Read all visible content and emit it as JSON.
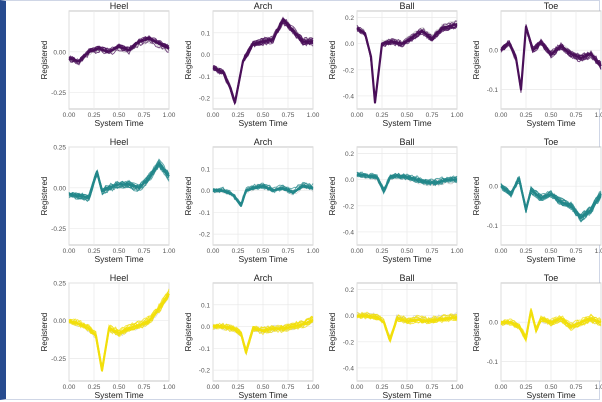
{
  "panel_titles": {
    "heel": "Heel",
    "arch": "Arch",
    "ball": "Ball",
    "toe": "Toe"
  },
  "axis_labels": {
    "x": "System Time",
    "y": "Registered"
  },
  "colors": {
    "purple": "#4a0f59",
    "teal": "#22878a",
    "yellow": "#f2df0a",
    "grid": "#e9e9e9",
    "panel_border": "#b9b9b9",
    "trace_gray": "#b9b9b9"
  },
  "chart_data": [
    {
      "type": "line",
      "title": "Heel",
      "row": 1,
      "color_key": "purple",
      "xlabel": "System Time",
      "ylabel": "Registered",
      "xlim": [
        0,
        1
      ],
      "ylim": [
        -0.35,
        0.25
      ],
      "xticks": [
        "0.00",
        "0.25",
        "0.50",
        "0.75",
        "1.00"
      ],
      "yticks": [
        0.0,
        -0.25
      ],
      "ytick_labels": [
        "0.00",
        "-0.25"
      ],
      "series": [
        {
          "x": [
            0.0,
            0.1,
            0.2,
            0.3,
            0.4,
            0.5,
            0.6,
            0.7,
            0.8,
            0.9,
            1.0
          ],
          "y": [
            -0.04,
            -0.06,
            0.0,
            0.02,
            0.0,
            0.03,
            0.01,
            0.06,
            0.08,
            0.05,
            0.02
          ]
        }
      ]
    },
    {
      "type": "line",
      "title": "Arch",
      "row": 1,
      "color_key": "purple",
      "xlabel": "System Time",
      "ylabel": "Registered",
      "xlim": [
        0,
        1
      ],
      "ylim": [
        -0.25,
        0.2
      ],
      "xticks": [
        "0.00",
        "0.25",
        "0.50",
        "0.75",
        "1.00"
      ],
      "yticks": [
        0.1,
        0.0,
        -0.1,
        -0.2
      ],
      "ytick_labels": [
        "0.1",
        "0.0",
        "-0.1",
        "-0.2"
      ],
      "series": [
        {
          "x": [
            0.0,
            0.1,
            0.17,
            0.22,
            0.3,
            0.4,
            0.5,
            0.6,
            0.7,
            0.8,
            0.9,
            1.0
          ],
          "y": [
            -0.06,
            -0.08,
            -0.15,
            -0.22,
            -0.03,
            0.05,
            0.06,
            0.07,
            0.16,
            0.11,
            0.06,
            0.06
          ]
        }
      ]
    },
    {
      "type": "line",
      "title": "Ball",
      "row": 1,
      "color_key": "purple",
      "xlabel": "System Time",
      "ylabel": "Registered",
      "xlim": [
        0,
        1
      ],
      "ylim": [
        -0.5,
        0.25
      ],
      "xticks": [
        "0.00",
        "0.25",
        "0.50",
        "0.75",
        "1.00"
      ],
      "yticks": [
        0.2,
        0.0,
        -0.2,
        -0.4
      ],
      "ytick_labels": [
        "0.2",
        "0.0",
        "-0.2",
        "-0.4"
      ],
      "series": [
        {
          "x": [
            0.0,
            0.08,
            0.14,
            0.18,
            0.25,
            0.35,
            0.45,
            0.55,
            0.65,
            0.75,
            0.85,
            1.0
          ],
          "y": [
            0.12,
            0.08,
            -0.1,
            -0.45,
            0.0,
            0.02,
            0.0,
            0.05,
            0.1,
            0.04,
            0.12,
            0.15
          ]
        }
      ]
    },
    {
      "type": "line",
      "title": "Toe",
      "row": 1,
      "color_key": "purple",
      "xlabel": "System Time",
      "ylabel": "Registered",
      "xlim": [
        0,
        1
      ],
      "ylim": [
        -0.15,
        0.1
      ],
      "xticks": [
        "0.00",
        "0.25",
        "0.50",
        "0.75",
        "1.00"
      ],
      "yticks": [
        0.0,
        -0.1
      ],
      "ytick_labels": [
        "0.0",
        "-0.1"
      ],
      "series": [
        {
          "x": [
            0.0,
            0.08,
            0.15,
            0.2,
            0.25,
            0.32,
            0.4,
            0.5,
            0.6,
            0.7,
            0.8,
            0.9,
            1.0
          ],
          "y": [
            0.0,
            0.02,
            -0.02,
            -0.1,
            0.06,
            0.0,
            0.02,
            -0.01,
            0.01,
            -0.01,
            -0.02,
            -0.01,
            -0.04
          ]
        }
      ]
    },
    {
      "type": "line",
      "title": "Heel",
      "row": 2,
      "color_key": "teal",
      "xlabel": "System Time",
      "ylabel": "Registered",
      "xlim": [
        0,
        1
      ],
      "ylim": [
        -0.35,
        0.25
      ],
      "xticks": [
        "0.00",
        "0.25",
        "0.50",
        "0.75",
        "1.00"
      ],
      "yticks": [
        0.25,
        0.0,
        -0.25
      ],
      "ytick_labels": [
        "0.25",
        "0.00",
        "-0.25"
      ],
      "series": [
        {
          "x": [
            0.0,
            0.1,
            0.2,
            0.28,
            0.33,
            0.4,
            0.5,
            0.6,
            0.7,
            0.8,
            0.9,
            1.0
          ],
          "y": [
            -0.04,
            -0.05,
            -0.06,
            0.1,
            -0.02,
            0.0,
            0.02,
            0.02,
            0.0,
            0.06,
            0.15,
            0.07
          ]
        }
      ]
    },
    {
      "type": "line",
      "title": "Arch",
      "row": 2,
      "color_key": "teal",
      "xlabel": "System Time",
      "ylabel": "Registered",
      "xlim": [
        0,
        1
      ],
      "ylim": [
        -0.25,
        0.2
      ],
      "xticks": [
        "0.00",
        "0.25",
        "0.50",
        "0.75",
        "1.00"
      ],
      "yticks": [
        0.1,
        0.0,
        -0.1,
        -0.2
      ],
      "ytick_labels": [
        "0.1",
        "0.0",
        "-0.1",
        "-0.2"
      ],
      "series": [
        {
          "x": [
            0.0,
            0.1,
            0.2,
            0.28,
            0.33,
            0.4,
            0.5,
            0.6,
            0.7,
            0.8,
            0.9,
            1.0
          ],
          "y": [
            0.0,
            0.0,
            -0.02,
            -0.07,
            0.0,
            0.01,
            0.02,
            0.0,
            0.01,
            -0.01,
            0.02,
            0.01
          ]
        }
      ]
    },
    {
      "type": "line",
      "title": "Ball",
      "row": 2,
      "color_key": "teal",
      "xlabel": "System Time",
      "ylabel": "Registered",
      "xlim": [
        0,
        1
      ],
      "ylim": [
        -0.5,
        0.25
      ],
      "xticks": [
        "0.00",
        "0.25",
        "0.50",
        "0.75",
        "1.00"
      ],
      "yticks": [
        0.2,
        0.0,
        -0.2,
        -0.4
      ],
      "ytick_labels": [
        "0.2",
        "0.0",
        "-0.2",
        "-0.4"
      ],
      "series": [
        {
          "x": [
            0.0,
            0.1,
            0.2,
            0.27,
            0.33,
            0.4,
            0.5,
            0.6,
            0.7,
            0.8,
            0.9,
            1.0
          ],
          "y": [
            0.04,
            0.03,
            0.02,
            -0.09,
            0.02,
            0.03,
            0.02,
            0.0,
            -0.02,
            -0.02,
            0.0,
            0.0
          ]
        }
      ]
    },
    {
      "type": "line",
      "title": "Toe",
      "row": 2,
      "color_key": "teal",
      "xlabel": "System Time",
      "ylabel": "Registered",
      "xlim": [
        0,
        1
      ],
      "ylim": [
        -0.15,
        0.1
      ],
      "xticks": [
        "0.00",
        "0.25",
        "0.50",
        "0.75",
        "1.00"
      ],
      "yticks": [
        0.0,
        -0.1
      ],
      "ytick_labels": [
        "0.0",
        "-0.1"
      ],
      "series": [
        {
          "x": [
            0.0,
            0.1,
            0.18,
            0.25,
            0.3,
            0.4,
            0.5,
            0.6,
            0.7,
            0.8,
            0.9,
            1.0
          ],
          "y": [
            0.0,
            -0.02,
            0.02,
            -0.06,
            -0.01,
            -0.03,
            -0.02,
            -0.04,
            -0.05,
            -0.08,
            -0.06,
            -0.02
          ]
        }
      ]
    },
    {
      "type": "line",
      "title": "Heel",
      "row": 3,
      "color_key": "yellow",
      "xlabel": "System Time",
      "ylabel": "Registered",
      "xlim": [
        0,
        1
      ],
      "ylim": [
        -0.4,
        0.25
      ],
      "xticks": [
        "0.00",
        "0.25",
        "0.50",
        "0.75",
        "1.00"
      ],
      "yticks": [
        0.25,
        0.0,
        -0.25
      ],
      "ytick_labels": [
        "0.25",
        "0.00",
        "-0.25"
      ],
      "series": [
        {
          "x": [
            0.0,
            0.1,
            0.2,
            0.27,
            0.33,
            0.4,
            0.5,
            0.6,
            0.7,
            0.8,
            0.9,
            1.0
          ],
          "y": [
            0.0,
            -0.02,
            -0.05,
            -0.1,
            -0.33,
            -0.05,
            -0.08,
            -0.05,
            -0.03,
            0.0,
            0.08,
            0.18
          ]
        }
      ]
    },
    {
      "type": "line",
      "title": "Arch",
      "row": 3,
      "color_key": "yellow",
      "xlabel": "System Time",
      "ylabel": "Registered",
      "xlim": [
        0,
        1
      ],
      "ylim": [
        -0.25,
        0.2
      ],
      "xticks": [
        "0.00",
        "0.25",
        "0.50",
        "0.75",
        "1.00"
      ],
      "yticks": [
        0.1,
        0.0,
        -0.1,
        -0.2
      ],
      "ytick_labels": [
        "0.1",
        "0.0",
        "-0.1",
        "-0.2"
      ],
      "series": [
        {
          "x": [
            0.0,
            0.1,
            0.2,
            0.28,
            0.33,
            0.4,
            0.5,
            0.6,
            0.7,
            0.8,
            0.9,
            1.0
          ],
          "y": [
            0.0,
            0.0,
            -0.01,
            -0.03,
            -0.12,
            -0.01,
            -0.02,
            -0.01,
            -0.01,
            0.0,
            0.01,
            0.03
          ]
        }
      ]
    },
    {
      "type": "line",
      "title": "Ball",
      "row": 3,
      "color_key": "yellow",
      "xlabel": "System Time",
      "ylabel": "Registered",
      "xlim": [
        0,
        1
      ],
      "ylim": [
        -0.5,
        0.25
      ],
      "xticks": [
        "0.00",
        "0.25",
        "0.50",
        "0.75",
        "1.00"
      ],
      "yticks": [
        0.2,
        0.0,
        -0.2,
        -0.4
      ],
      "ytick_labels": [
        "0.2",
        "0.0",
        "-0.2",
        "-0.4"
      ],
      "series": [
        {
          "x": [
            0.0,
            0.1,
            0.2,
            0.27,
            0.33,
            0.4,
            0.5,
            0.6,
            0.7,
            0.8,
            0.9,
            1.0
          ],
          "y": [
            0.0,
            0.0,
            -0.01,
            -0.05,
            -0.19,
            -0.02,
            -0.04,
            -0.03,
            -0.04,
            -0.03,
            -0.02,
            -0.01
          ]
        }
      ]
    },
    {
      "type": "line",
      "title": "Toe",
      "row": 3,
      "color_key": "yellow",
      "xlabel": "System Time",
      "ylabel": "Registered",
      "xlim": [
        0,
        1
      ],
      "ylim": [
        -0.15,
        0.1
      ],
      "xticks": [
        "0.00",
        "0.25",
        "0.50",
        "0.75",
        "1.00"
      ],
      "yticks": [
        0.0,
        -0.1
      ],
      "ytick_labels": [
        "0.0",
        "-0.1"
      ],
      "series": [
        {
          "x": [
            0.0,
            0.1,
            0.18,
            0.25,
            0.3,
            0.35,
            0.4,
            0.5,
            0.6,
            0.7,
            0.8,
            0.9,
            1.0
          ],
          "y": [
            0.0,
            0.0,
            -0.01,
            -0.04,
            0.03,
            -0.02,
            0.01,
            0.0,
            0.01,
            -0.01,
            0.0,
            0.01,
            0.0
          ]
        }
      ]
    }
  ]
}
